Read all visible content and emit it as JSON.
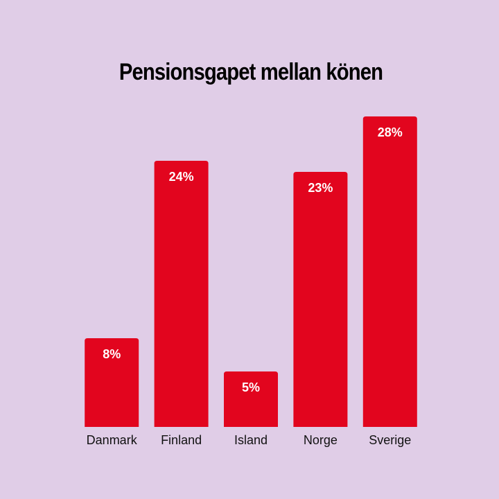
{
  "chart_data": {
    "type": "bar",
    "title": "Pensionsgapet mellan könen",
    "categories": [
      "Danmark",
      "Finland",
      "Island",
      "Norge",
      "Sverige"
    ],
    "values": [
      8,
      24,
      5,
      23,
      28
    ],
    "value_labels": [
      "8%",
      "24%",
      "5%",
      "23%",
      "28%"
    ],
    "color": "#e2051e"
  }
}
